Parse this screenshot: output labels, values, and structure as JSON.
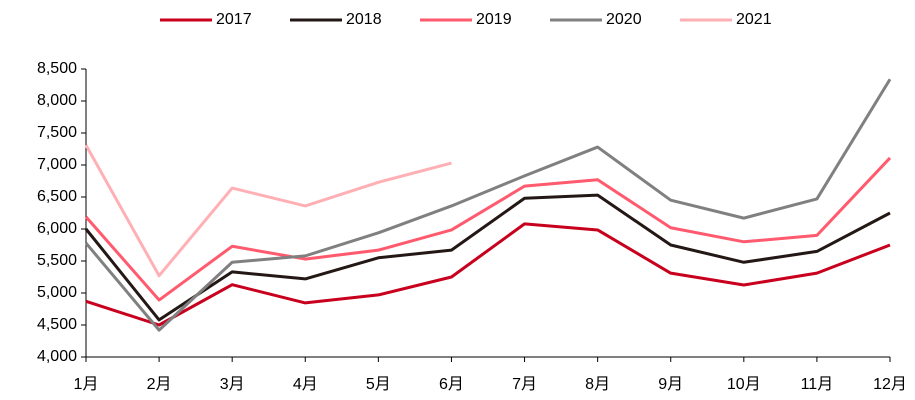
{
  "chart_data": {
    "type": "line",
    "categories": [
      "1月",
      "2月",
      "3月",
      "4月",
      "5月",
      "6月",
      "7月",
      "8月",
      "9月",
      "10月",
      "11月",
      "12月"
    ],
    "series": [
      {
        "name": "2017",
        "color": "#c8001e",
        "values": [
          4870,
          4500,
          5130,
          4845,
          4970,
          5250,
          6080,
          5985,
          5310,
          5125,
          5310,
          5750
        ]
      },
      {
        "name": "2018",
        "color": "#231815",
        "values": [
          6000,
          4580,
          5330,
          5220,
          5550,
          5670,
          6480,
          6530,
          5750,
          5480,
          5650,
          6250
        ]
      },
      {
        "name": "2019",
        "color": "#ff5a6e",
        "values": [
          6190,
          4890,
          5730,
          5530,
          5670,
          5985,
          6670,
          6770,
          6020,
          5800,
          5900,
          7110
        ]
      },
      {
        "name": "2020",
        "color": "#808080",
        "values": [
          5780,
          4420,
          5480,
          5580,
          5940,
          6360,
          6830,
          7280,
          6450,
          6170,
          6470,
          8340
        ]
      },
      {
        "name": "2021",
        "color": "#ffb0b5",
        "values": [
          7310,
          5270,
          6640,
          6360,
          6730,
          7030,
          null,
          null,
          null,
          null,
          null,
          null
        ]
      }
    ],
    "ylim": [
      4000,
      8500
    ],
    "yticks": [
      {
        "value": 4000,
        "label": "4,000"
      },
      {
        "value": 4500,
        "label": "4,500"
      },
      {
        "value": 5000,
        "label": "5,000"
      },
      {
        "value": 5500,
        "label": "5,500"
      },
      {
        "value": 6000,
        "label": "6,000"
      },
      {
        "value": 6500,
        "label": "6,500"
      },
      {
        "value": 7000,
        "label": "7,000"
      },
      {
        "value": 7500,
        "label": "7,500"
      },
      {
        "value": 8000,
        "label": "8,000"
      },
      {
        "value": 8500,
        "label": "8,500"
      }
    ],
    "legend": "top"
  }
}
